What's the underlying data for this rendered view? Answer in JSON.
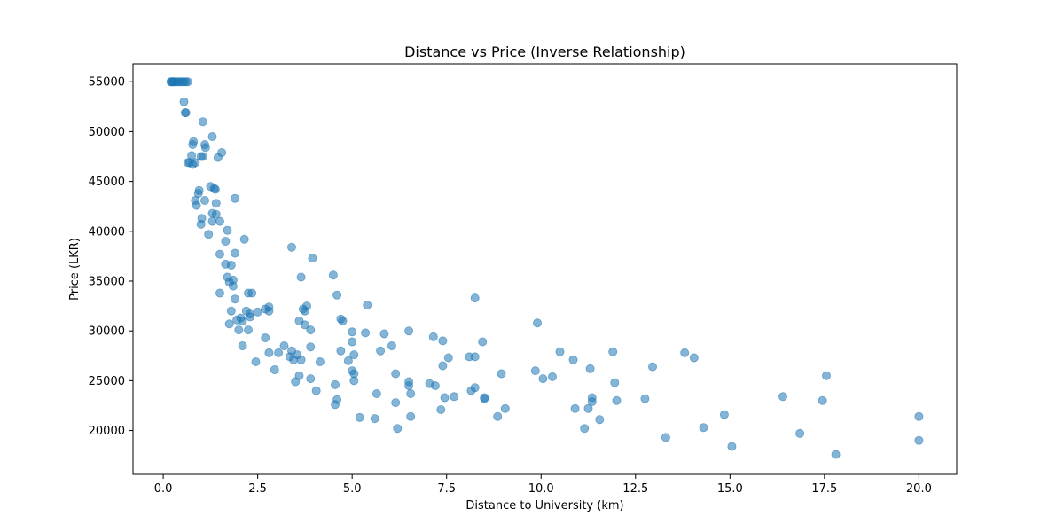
{
  "chart_data": {
    "type": "scatter",
    "title": "Distance vs Price (Inverse Relationship)",
    "xlabel": "Distance to University (km)",
    "ylabel": "Price (LKR)",
    "xlim": [
      -0.8,
      21.0
    ],
    "ylim": [
      15600,
      56800
    ],
    "xticks": [
      0.0,
      2.5,
      5.0,
      7.5,
      10.0,
      12.5,
      15.0,
      17.5,
      20.0
    ],
    "xtick_labels": [
      "0.0",
      "2.5",
      "5.0",
      "7.5",
      "10.0",
      "12.5",
      "15.0",
      "17.5",
      "20.0"
    ],
    "yticks": [
      20000,
      25000,
      30000,
      35000,
      40000,
      45000,
      50000,
      55000
    ],
    "ytick_labels": [
      "20000",
      "25000",
      "30000",
      "35000",
      "40000",
      "45000",
      "50000",
      "55000"
    ],
    "grid": false,
    "marker_color": "#1f77b4",
    "marker_alpha": 0.55,
    "points": [
      [
        0.2,
        55000
      ],
      [
        0.22,
        55000
      ],
      [
        0.25,
        55000
      ],
      [
        0.28,
        55000
      ],
      [
        0.3,
        55000
      ],
      [
        0.35,
        55000
      ],
      [
        0.4,
        55000
      ],
      [
        0.45,
        55000
      ],
      [
        0.5,
        55000
      ],
      [
        0.55,
        55000
      ],
      [
        0.6,
        55000
      ],
      [
        0.65,
        55000
      ],
      [
        0.55,
        53000
      ],
      [
        0.58,
        51900
      ],
      [
        0.6,
        51900
      ],
      [
        1.05,
        51000
      ],
      [
        1.3,
        49500
      ],
      [
        1.1,
        48700
      ],
      [
        1.12,
        48400
      ],
      [
        0.8,
        49000
      ],
      [
        0.78,
        48700
      ],
      [
        0.75,
        47600
      ],
      [
        1.0,
        47500
      ],
      [
        1.05,
        47500
      ],
      [
        1.55,
        47900
      ],
      [
        1.45,
        47400
      ],
      [
        0.65,
        46900
      ],
      [
        0.7,
        46900
      ],
      [
        0.78,
        46700
      ],
      [
        0.85,
        46900
      ],
      [
        1.25,
        44500
      ],
      [
        1.35,
        44300
      ],
      [
        1.38,
        44200
      ],
      [
        0.95,
        44100
      ],
      [
        0.93,
        43800
      ],
      [
        0.85,
        43100
      ],
      [
        1.1,
        43100
      ],
      [
        1.4,
        42800
      ],
      [
        0.88,
        42600
      ],
      [
        1.3,
        41800
      ],
      [
        1.4,
        41700
      ],
      [
        1.02,
        41300
      ],
      [
        1.3,
        41000
      ],
      [
        1.5,
        41000
      ],
      [
        1.0,
        40700
      ],
      [
        1.7,
        40100
      ],
      [
        1.2,
        39700
      ],
      [
        1.65,
        39000
      ],
      [
        2.15,
        39200
      ],
      [
        1.9,
        43300
      ],
      [
        1.9,
        37800
      ],
      [
        1.5,
        37700
      ],
      [
        1.65,
        36700
      ],
      [
        1.8,
        36600
      ],
      [
        1.7,
        35400
      ],
      [
        1.75,
        34900
      ],
      [
        1.85,
        35100
      ],
      [
        1.85,
        34500
      ],
      [
        1.5,
        33800
      ],
      [
        2.25,
        33800
      ],
      [
        2.35,
        33800
      ],
      [
        1.9,
        33200
      ],
      [
        1.8,
        32000
      ],
      [
        2.05,
        31300
      ],
      [
        1.95,
        31100
      ],
      [
        2.1,
        31000
      ],
      [
        2.2,
        32000
      ],
      [
        2.3,
        31700
      ],
      [
        2.3,
        31400
      ],
      [
        2.5,
        31900
      ],
      [
        2.7,
        32200
      ],
      [
        2.8,
        32400
      ],
      [
        2.8,
        32000
      ],
      [
        1.75,
        30700
      ],
      [
        2.0,
        30100
      ],
      [
        2.25,
        30100
      ],
      [
        2.1,
        28500
      ],
      [
        2.45,
        26900
      ],
      [
        2.7,
        29300
      ],
      [
        2.8,
        27800
      ],
      [
        3.05,
        27800
      ],
      [
        2.95,
        26100
      ],
      [
        3.4,
        38400
      ],
      [
        3.95,
        37300
      ],
      [
        3.65,
        35400
      ],
      [
        4.5,
        35600
      ],
      [
        4.6,
        33600
      ],
      [
        3.8,
        32500
      ],
      [
        3.7,
        32200
      ],
      [
        3.75,
        32000
      ],
      [
        3.6,
        31000
      ],
      [
        3.75,
        30600
      ],
      [
        3.9,
        30100
      ],
      [
        4.7,
        31200
      ],
      [
        4.75,
        31000
      ],
      [
        5.4,
        32600
      ],
      [
        3.2,
        28500
      ],
      [
        3.4,
        28000
      ],
      [
        3.35,
        27400
      ],
      [
        3.45,
        27100
      ],
      [
        3.55,
        27600
      ],
      [
        3.65,
        27100
      ],
      [
        3.9,
        28400
      ],
      [
        4.15,
        26900
      ],
      [
        3.5,
        24900
      ],
      [
        3.6,
        25500
      ],
      [
        3.9,
        25200
      ],
      [
        4.05,
        24000
      ],
      [
        4.55,
        24600
      ],
      [
        4.55,
        22600
      ],
      [
        4.6,
        23100
      ],
      [
        4.7,
        28000
      ],
      [
        4.9,
        27000
      ],
      [
        5.0,
        26000
      ],
      [
        5.05,
        25700
      ],
      [
        5.05,
        27600
      ],
      [
        5.05,
        25000
      ],
      [
        5.0,
        29900
      ],
      [
        5.0,
        28900
      ],
      [
        5.35,
        29800
      ],
      [
        5.85,
        29700
      ],
      [
        5.75,
        28000
      ],
      [
        6.05,
        28500
      ],
      [
        6.15,
        25700
      ],
      [
        6.5,
        30000
      ],
      [
        6.5,
        24900
      ],
      [
        6.5,
        24500
      ],
      [
        6.55,
        23700
      ],
      [
        5.65,
        23700
      ],
      [
        6.15,
        22800
      ],
      [
        5.2,
        21300
      ],
      [
        5.6,
        21200
      ],
      [
        6.2,
        20200
      ],
      [
        6.55,
        21400
      ],
      [
        7.15,
        29400
      ],
      [
        7.4,
        29000
      ],
      [
        7.05,
        24700
      ],
      [
        7.2,
        24500
      ],
      [
        7.4,
        26500
      ],
      [
        7.55,
        27300
      ],
      [
        7.35,
        22100
      ],
      [
        7.45,
        23300
      ],
      [
        7.7,
        23400
      ],
      [
        8.1,
        27400
      ],
      [
        8.25,
        27400
      ],
      [
        8.25,
        33300
      ],
      [
        8.45,
        28900
      ],
      [
        8.15,
        24000
      ],
      [
        8.25,
        24300
      ],
      [
        8.5,
        23300
      ],
      [
        8.5,
        23200
      ],
      [
        8.85,
        21400
      ],
      [
        8.95,
        25700
      ],
      [
        9.05,
        22200
      ],
      [
        9.9,
        30800
      ],
      [
        9.85,
        26000
      ],
      [
        10.05,
        25200
      ],
      [
        10.3,
        25400
      ],
      [
        10.5,
        27900
      ],
      [
        10.85,
        27100
      ],
      [
        10.9,
        22200
      ],
      [
        11.15,
        20200
      ],
      [
        11.25,
        22200
      ],
      [
        11.3,
        26200
      ],
      [
        11.35,
        23300
      ],
      [
        11.35,
        22900
      ],
      [
        11.55,
        21100
      ],
      [
        11.9,
        27900
      ],
      [
        11.95,
        24800
      ],
      [
        12.0,
        23000
      ],
      [
        12.75,
        23200
      ],
      [
        12.95,
        26400
      ],
      [
        13.3,
        19300
      ],
      [
        13.8,
        27800
      ],
      [
        14.05,
        27300
      ],
      [
        14.3,
        20300
      ],
      [
        14.85,
        21600
      ],
      [
        15.05,
        18400
      ],
      [
        16.4,
        23400
      ],
      [
        16.85,
        19700
      ],
      [
        17.45,
        23000
      ],
      [
        17.55,
        25500
      ],
      [
        17.8,
        17600
      ],
      [
        20.0,
        21400
      ],
      [
        20.0,
        19000
      ]
    ]
  }
}
